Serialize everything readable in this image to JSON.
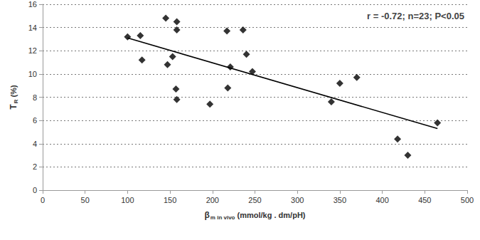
{
  "chart_data": {
    "type": "scatter",
    "annotation": "r = -0.72; n=23; P<0.05",
    "xlabel": {
      "main": "β",
      "subscript": "m in vivo",
      "rest": "(mmol/kg . dm/pH)"
    },
    "ylabel": {
      "main": "T",
      "subscript": "R",
      "rest": "(%)"
    },
    "x": [
      100,
      115,
      117,
      145,
      147,
      153,
      157,
      158,
      158,
      158,
      197,
      217,
      218,
      221,
      236,
      240,
      247,
      340,
      350,
      370,
      418,
      430,
      465
    ],
    "values": [
      13.2,
      13.3,
      11.2,
      14.8,
      10.8,
      11.5,
      8.7,
      7.8,
      14.5,
      13.8,
      7.4,
      13.7,
      8.8,
      10.6,
      13.8,
      11.7,
      10.2,
      7.6,
      9.2,
      9.7,
      4.4,
      3.0,
      5.8
    ],
    "color": "#000000",
    "marker": "diamond",
    "fit_line": {
      "x": [
        100,
        465
      ],
      "values": [
        13.1,
        5.3
      ],
      "color": "#000000",
      "line_style": "solid"
    },
    "xlim": [
      0,
      500
    ],
    "xticks": [
      0,
      50,
      100,
      150,
      200,
      250,
      300,
      350,
      400,
      450,
      500
    ],
    "ylim": [
      0,
      16
    ],
    "yticks": [
      0,
      2,
      4,
      6,
      8,
      10,
      12,
      14,
      16
    ],
    "grid": true
  }
}
